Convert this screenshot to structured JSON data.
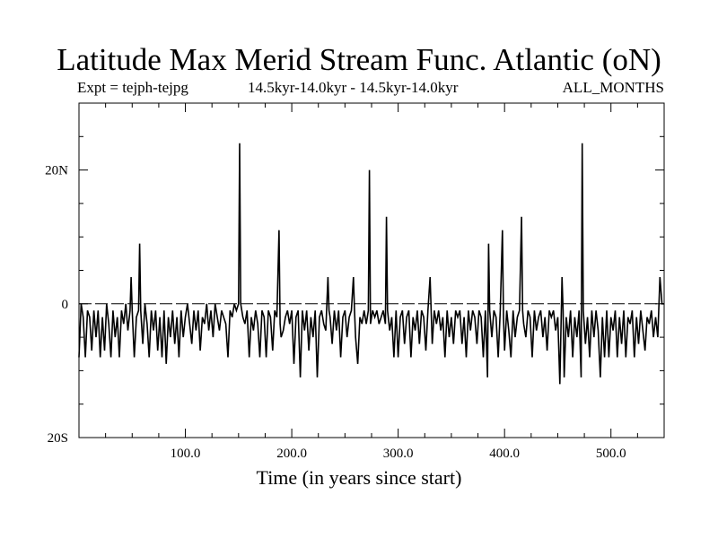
{
  "chart_data": {
    "type": "line",
    "title": "Latitude Max Merid Stream Func. Atlantic (oN)",
    "subtitle_left": "Expt = tejph-tejpg",
    "subtitle_center": "14.5kyr-14.0kyr - 14.5kyr-14.0kyr",
    "subtitle_right": "ALL_MONTHS",
    "xlabel": "Time (in years since start)",
    "ylabel": "",
    "xlim": [
      0,
      550
    ],
    "ylim": [
      -20,
      30
    ],
    "x_ticks": [
      100,
      200,
      300,
      400,
      500
    ],
    "x_tick_labels": [
      "100.0",
      "200.0",
      "300.0",
      "400.0",
      "500.0"
    ],
    "y_ticks": [
      -20,
      0,
      20
    ],
    "y_tick_labels": [
      "20S",
      "0",
      "20N"
    ],
    "series": [
      {
        "color": "#000000",
        "points": [
          [
            0,
            -8
          ],
          [
            2,
            0
          ],
          [
            4,
            -2
          ],
          [
            6,
            -8
          ],
          [
            8,
            -1
          ],
          [
            10,
            -2
          ],
          [
            12,
            -7
          ],
          [
            14,
            -1
          ],
          [
            16,
            -5
          ],
          [
            18,
            -1
          ],
          [
            20,
            -8
          ],
          [
            22,
            -2
          ],
          [
            24,
            -7
          ],
          [
            26,
            0
          ],
          [
            28,
            -3
          ],
          [
            30,
            -8
          ],
          [
            32,
            -1
          ],
          [
            34,
            -5
          ],
          [
            36,
            -2
          ],
          [
            38,
            -8
          ],
          [
            40,
            -1
          ],
          [
            42,
            -3
          ],
          [
            44,
            0
          ],
          [
            46,
            -4
          ],
          [
            48,
            -1
          ],
          [
            49,
            4
          ],
          [
            50,
            -1
          ],
          [
            52,
            -8
          ],
          [
            54,
            -2
          ],
          [
            56,
            -1
          ],
          [
            57,
            9
          ],
          [
            58,
            -1
          ],
          [
            60,
            -6
          ],
          [
            62,
            0
          ],
          [
            64,
            -3
          ],
          [
            66,
            -8
          ],
          [
            68,
            -1
          ],
          [
            70,
            -4
          ],
          [
            72,
            -1
          ],
          [
            74,
            -7
          ],
          [
            76,
            -2
          ],
          [
            78,
            -8
          ],
          [
            80,
            -1
          ],
          [
            82,
            -9
          ],
          [
            84,
            -2
          ],
          [
            86,
            -5
          ],
          [
            88,
            -1
          ],
          [
            90,
            -6
          ],
          [
            92,
            -2
          ],
          [
            94,
            -8
          ],
          [
            96,
            -1
          ],
          [
            98,
            -5
          ],
          [
            100,
            -2
          ],
          [
            102,
            0
          ],
          [
            104,
            -3
          ],
          [
            106,
            -6
          ],
          [
            108,
            -1
          ],
          [
            110,
            -4
          ],
          [
            112,
            -1
          ],
          [
            114,
            -7
          ],
          [
            116,
            -2
          ],
          [
            118,
            -3
          ],
          [
            120,
            0
          ],
          [
            122,
            -4
          ],
          [
            124,
            -1
          ],
          [
            126,
            -5
          ],
          [
            128,
            0
          ],
          [
            130,
            -2
          ],
          [
            132,
            -4
          ],
          [
            134,
            -1
          ],
          [
            136,
            -2
          ],
          [
            138,
            -3
          ],
          [
            140,
            -8
          ],
          [
            142,
            -1
          ],
          [
            144,
            -2
          ],
          [
            146,
            0
          ],
          [
            148,
            -1
          ],
          [
            150,
            0
          ],
          [
            151,
            24
          ],
          [
            152,
            0
          ],
          [
            154,
            -2
          ],
          [
            156,
            -3
          ],
          [
            158,
            -1
          ],
          [
            160,
            -8
          ],
          [
            162,
            -2
          ],
          [
            164,
            -4
          ],
          [
            166,
            -1
          ],
          [
            168,
            -3
          ],
          [
            170,
            -8
          ],
          [
            172,
            -1
          ],
          [
            174,
            -2
          ],
          [
            176,
            -8
          ],
          [
            178,
            -1
          ],
          [
            180,
            -2
          ],
          [
            182,
            -7
          ],
          [
            184,
            -1
          ],
          [
            186,
            -2
          ],
          [
            188,
            11
          ],
          [
            189,
            -3
          ],
          [
            190,
            -5
          ],
          [
            192,
            -4
          ],
          [
            194,
            -2
          ],
          [
            196,
            -1
          ],
          [
            198,
            -3
          ],
          [
            200,
            -1
          ],
          [
            202,
            -9
          ],
          [
            204,
            -2
          ],
          [
            206,
            -1
          ],
          [
            208,
            -11
          ],
          [
            210,
            -1
          ],
          [
            212,
            -4
          ],
          [
            214,
            -1
          ],
          [
            216,
            -7
          ],
          [
            218,
            -2
          ],
          [
            220,
            -5
          ],
          [
            222,
            -1
          ],
          [
            224,
            -11
          ],
          [
            226,
            -2
          ],
          [
            228,
            -1
          ],
          [
            230,
            -3
          ],
          [
            232,
            -4
          ],
          [
            234,
            4
          ],
          [
            235,
            -1
          ],
          [
            236,
            -2
          ],
          [
            238,
            -6
          ],
          [
            240,
            -1
          ],
          [
            242,
            -4
          ],
          [
            244,
            -1
          ],
          [
            246,
            -8
          ],
          [
            248,
            -2
          ],
          [
            250,
            -1
          ],
          [
            252,
            -5
          ],
          [
            254,
            -2
          ],
          [
            256,
            -1
          ],
          [
            258,
            4
          ],
          [
            259,
            -1
          ],
          [
            260,
            -5
          ],
          [
            262,
            -9
          ],
          [
            264,
            -2
          ],
          [
            266,
            -3
          ],
          [
            268,
            -1
          ],
          [
            270,
            -3
          ],
          [
            272,
            -1
          ],
          [
            273,
            20
          ],
          [
            274,
            -3
          ],
          [
            276,
            -1
          ],
          [
            278,
            -2
          ],
          [
            280,
            -1
          ],
          [
            282,
            -3
          ],
          [
            284,
            -2
          ],
          [
            286,
            -1
          ],
          [
            288,
            -3
          ],
          [
            289,
            13
          ],
          [
            290,
            -1
          ],
          [
            292,
            -4
          ],
          [
            294,
            -2
          ],
          [
            296,
            -8
          ],
          [
            298,
            -1
          ],
          [
            300,
            -8
          ],
          [
            302,
            -2
          ],
          [
            304,
            -1
          ],
          [
            306,
            -6
          ],
          [
            308,
            -2
          ],
          [
            310,
            -1
          ],
          [
            312,
            -8
          ],
          [
            314,
            -2
          ],
          [
            316,
            -4
          ],
          [
            318,
            -1
          ],
          [
            320,
            -6
          ],
          [
            322,
            -1
          ],
          [
            324,
            -2
          ],
          [
            326,
            -7
          ],
          [
            328,
            -1
          ],
          [
            330,
            4
          ],
          [
            331,
            -1
          ],
          [
            332,
            -6
          ],
          [
            334,
            -1
          ],
          [
            336,
            -3
          ],
          [
            338,
            -1
          ],
          [
            340,
            -4
          ],
          [
            342,
            -2
          ],
          [
            344,
            -8
          ],
          [
            346,
            -1
          ],
          [
            348,
            -5
          ],
          [
            350,
            -2
          ],
          [
            352,
            -6
          ],
          [
            354,
            -1
          ],
          [
            356,
            -2
          ],
          [
            358,
            -1
          ],
          [
            360,
            -6
          ],
          [
            362,
            -2
          ],
          [
            364,
            -8
          ],
          [
            366,
            -1
          ],
          [
            368,
            -4
          ],
          [
            370,
            -1
          ],
          [
            372,
            -2
          ],
          [
            374,
            -6
          ],
          [
            376,
            -1
          ],
          [
            378,
            -2
          ],
          [
            380,
            -8
          ],
          [
            382,
            -1
          ],
          [
            384,
            -11
          ],
          [
            385,
            9
          ],
          [
            386,
            -1
          ],
          [
            388,
            -5
          ],
          [
            390,
            -1
          ],
          [
            392,
            -2
          ],
          [
            394,
            -8
          ],
          [
            396,
            -1
          ],
          [
            398,
            11
          ],
          [
            399,
            -2
          ],
          [
            400,
            -7
          ],
          [
            402,
            -1
          ],
          [
            404,
            -4
          ],
          [
            406,
            -8
          ],
          [
            408,
            -1
          ],
          [
            410,
            -5
          ],
          [
            412,
            -2
          ],
          [
            414,
            -1
          ],
          [
            416,
            13
          ],
          [
            417,
            -1
          ],
          [
            418,
            -3
          ],
          [
            420,
            -5
          ],
          [
            422,
            -1
          ],
          [
            424,
            -2
          ],
          [
            426,
            -8
          ],
          [
            428,
            -1
          ],
          [
            430,
            -4
          ],
          [
            432,
            -2
          ],
          [
            434,
            -1
          ],
          [
            436,
            -5
          ],
          [
            438,
            -2
          ],
          [
            440,
            -7
          ],
          [
            442,
            -1
          ],
          [
            444,
            -2
          ],
          [
            446,
            -1
          ],
          [
            448,
            -4
          ],
          [
            450,
            -2
          ],
          [
            452,
            -12
          ],
          [
            454,
            4
          ],
          [
            455,
            -1
          ],
          [
            456,
            -11
          ],
          [
            458,
            -2
          ],
          [
            460,
            -5
          ],
          [
            462,
            -1
          ],
          [
            464,
            -8
          ],
          [
            466,
            -2
          ],
          [
            468,
            -5
          ],
          [
            470,
            -1
          ],
          [
            472,
            -11
          ],
          [
            473,
            24
          ],
          [
            474,
            -1
          ],
          [
            476,
            -6
          ],
          [
            478,
            -2
          ],
          [
            480,
            -8
          ],
          [
            482,
            -1
          ],
          [
            484,
            -5
          ],
          [
            486,
            -1
          ],
          [
            488,
            -4
          ],
          [
            490,
            -11
          ],
          [
            492,
            -2
          ],
          [
            494,
            -8
          ],
          [
            496,
            -1
          ],
          [
            498,
            -8
          ],
          [
            500,
            -2
          ],
          [
            502,
            -4
          ],
          [
            504,
            -1
          ],
          [
            506,
            -8
          ],
          [
            508,
            -2
          ],
          [
            510,
            -6
          ],
          [
            512,
            -1
          ],
          [
            514,
            -8
          ],
          [
            516,
            -2
          ],
          [
            518,
            -3
          ],
          [
            520,
            -1
          ],
          [
            522,
            -8
          ],
          [
            524,
            -2
          ],
          [
            526,
            -6
          ],
          [
            528,
            -1
          ],
          [
            530,
            -4
          ],
          [
            532,
            -7
          ],
          [
            534,
            -2
          ],
          [
            536,
            -3
          ],
          [
            538,
            -1
          ],
          [
            540,
            -5
          ],
          [
            542,
            -2
          ],
          [
            544,
            -5
          ],
          [
            546,
            4
          ],
          [
            548,
            0
          ],
          [
            550,
            0
          ]
        ]
      }
    ]
  }
}
